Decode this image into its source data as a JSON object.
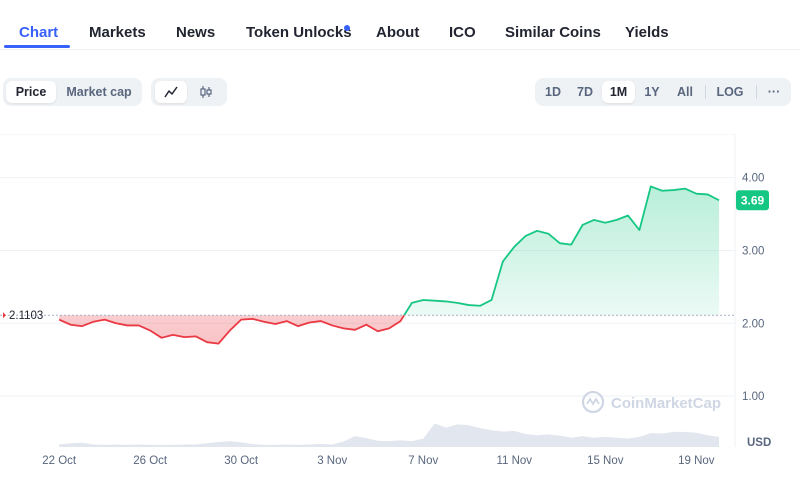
{
  "tabs": [
    {
      "label": "Chart",
      "active": true
    },
    {
      "label": "Markets"
    },
    {
      "label": "News"
    },
    {
      "label": "Token Unlocks",
      "has_dot": true
    },
    {
      "label": "About"
    },
    {
      "label": "ICO"
    },
    {
      "label": "Similar Coins"
    },
    {
      "label": "Yields"
    }
  ],
  "controls": {
    "metric": [
      "Price",
      "Market cap"
    ],
    "metric_selected": "Price",
    "chart_style_icons": [
      "line-chart-icon",
      "candlestick-icon"
    ],
    "chart_style_selected": "line-chart-icon",
    "ranges": [
      "1D",
      "7D",
      "1M",
      "1Y",
      "All"
    ],
    "range_selected": "1M",
    "log_label": "LOG",
    "more_label": "···"
  },
  "colors": {
    "accent": "#3861fb",
    "up": "#16c784",
    "down": "#ea3943",
    "up_fill": "#16c784",
    "down_fill": "#ea3943"
  },
  "chart_data": {
    "type": "line",
    "currency_label": "USD",
    "watermark": "CoinMarketCap",
    "reference_price": 2.1103,
    "reference_label": "2.1103",
    "current_price_label": "3.69",
    "current_price": 3.69,
    "ylim": [
      0.3,
      4.6
    ],
    "y_ticks": [
      {
        "value": 4.0,
        "label": "4.00"
      },
      {
        "value": 3.0,
        "label": "3.00"
      },
      {
        "value": 2.0,
        "label": "2.00"
      },
      {
        "value": 1.0,
        "label": "1.00"
      }
    ],
    "x_ticks": [
      {
        "day": 0,
        "label": "22 Oct"
      },
      {
        "day": 4,
        "label": "26 Oct"
      },
      {
        "day": 8,
        "label": "30 Oct"
      },
      {
        "day": 12,
        "label": "3 Nov"
      },
      {
        "day": 16,
        "label": "7 Nov"
      },
      {
        "day": 20,
        "label": "11 Nov"
      },
      {
        "day": 24,
        "label": "15 Nov"
      },
      {
        "day": 28,
        "label": "19 Nov"
      }
    ],
    "xlim_days": [
      -2.6,
      29.7
    ],
    "grid": true,
    "series": [
      {
        "day": [
          0,
          0.5,
          1,
          1.5,
          2,
          2.5,
          3,
          3.5,
          4,
          4.5,
          5,
          5.5,
          6,
          6.5,
          7,
          7.5,
          8,
          8.5,
          9,
          9.5,
          10,
          10.5,
          11,
          11.5,
          12,
          12.5,
          13,
          13.5,
          14,
          14.5,
          15,
          15.5,
          16,
          16.5,
          17,
          17.5,
          18,
          18.5,
          19,
          19.5,
          20,
          20.5,
          21,
          21.5,
          22,
          22.5,
          23,
          23.5,
          24,
          24.5,
          25,
          25.5,
          26,
          26.5,
          27,
          27.5,
          28,
          28.5,
          29
        ],
        "price": [
          2.05,
          1.98,
          1.96,
          2.02,
          2.05,
          2.0,
          1.97,
          1.97,
          1.9,
          1.8,
          1.84,
          1.81,
          1.82,
          1.74,
          1.72,
          1.9,
          2.05,
          2.06,
          2.02,
          1.99,
          2.03,
          1.96,
          2.01,
          2.03,
          1.97,
          1.93,
          1.91,
          1.98,
          1.89,
          1.93,
          2.03,
          2.28,
          2.32,
          2.31,
          2.3,
          2.28,
          2.25,
          2.24,
          2.32,
          2.85,
          3.05,
          3.2,
          3.27,
          3.23,
          3.1,
          3.08,
          3.35,
          3.42,
          3.38,
          3.42,
          3.48,
          3.28,
          3.88,
          3.82,
          3.83,
          3.85,
          3.78,
          3.77,
          3.69
        ]
      }
    ],
    "volume": [
      0.06,
      0.09,
      0.1,
      0.06,
      0.05,
      0.06,
      0.05,
      0.06,
      0.05,
      0.05,
      0.05,
      0.06,
      0.06,
      0.09,
      0.12,
      0.14,
      0.11,
      0.07,
      0.05,
      0.05,
      0.06,
      0.05,
      0.06,
      0.07,
      0.06,
      0.13,
      0.26,
      0.21,
      0.15,
      0.14,
      0.16,
      0.14,
      0.2,
      0.56,
      0.46,
      0.54,
      0.52,
      0.45,
      0.4,
      0.37,
      0.38,
      0.31,
      0.28,
      0.3,
      0.27,
      0.22,
      0.26,
      0.22,
      0.24,
      0.22,
      0.2,
      0.24,
      0.33,
      0.32,
      0.36,
      0.36,
      0.34,
      0.28,
      0.24
    ]
  }
}
